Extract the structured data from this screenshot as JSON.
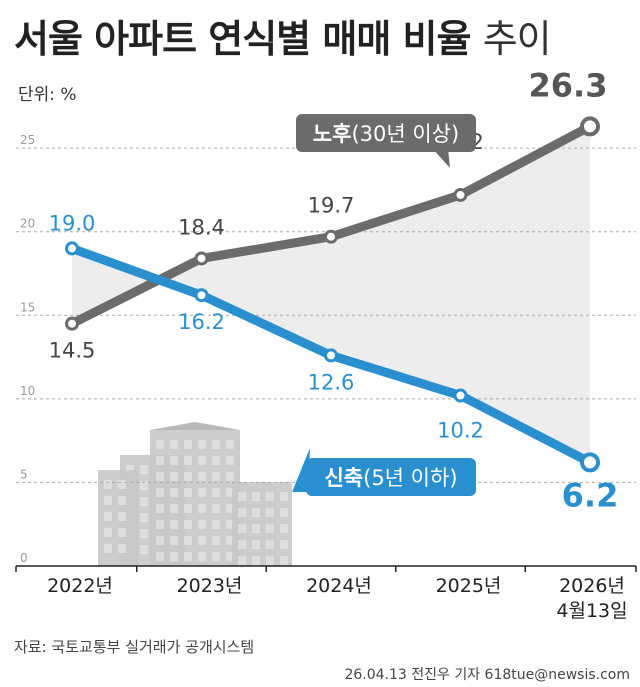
{
  "title": {
    "main": "서울 아파트 연식별 매매 비율",
    "suffix": "추이"
  },
  "unit_label": "단위: %",
  "source": "자료: 국토교통부 실거래가 공개시스템",
  "credit": "26.04.13 전진우 기자 618tue@newsis.com",
  "colors": {
    "old": "#6b6b6b",
    "new": "#2a8fcf",
    "buildings": "#c8c8c8"
  },
  "chart_data": {
    "type": "line",
    "categories": [
      "2022년",
      "2023년",
      "2024년",
      "2025년",
      "2026년"
    ],
    "category_sub": [
      "",
      "",
      "",
      "",
      "4월13일"
    ],
    "ylim": [
      0,
      28
    ],
    "yticks": [
      0,
      5,
      10,
      15,
      20,
      25
    ],
    "grid": true,
    "series": [
      {
        "name": "노후",
        "name_detail": "(30년 이상)",
        "color": "#6b6b6b",
        "values": [
          14.5,
          18.4,
          19.7,
          22.2,
          26.3
        ]
      },
      {
        "name": "신축",
        "name_detail": "(5년 이하)",
        "color": "#2a8fcf",
        "values": [
          19.0,
          16.2,
          12.6,
          10.2,
          6.2
        ]
      }
    ]
  }
}
